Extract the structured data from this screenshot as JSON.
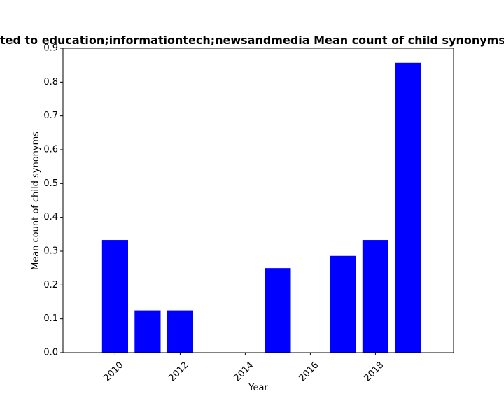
{
  "chart_data": {
    "type": "bar",
    "title": "Mean count of child synonyms related to education;informationtech;newsandmedia Mean count of child synonyms",
    "xlabel": "Year",
    "ylabel": "Mean count of child synonyms",
    "x": [
      2010,
      2011,
      2012,
      2015,
      2017,
      2018,
      2019
    ],
    "values": [
      0.333,
      0.125,
      0.125,
      0.25,
      0.286,
      0.333,
      0.857
    ],
    "xlim": [
      2008.4,
      2020.4
    ],
    "ylim": [
      0,
      0.9
    ],
    "xticks": [
      2010,
      2012,
      2014,
      2016,
      2018
    ],
    "yticks": [
      0.0,
      0.1,
      0.2,
      0.3,
      0.4,
      0.5,
      0.6,
      0.7,
      0.8,
      0.9
    ],
    "bar_color": "#0000ff",
    "grid": false,
    "legend": "none"
  }
}
